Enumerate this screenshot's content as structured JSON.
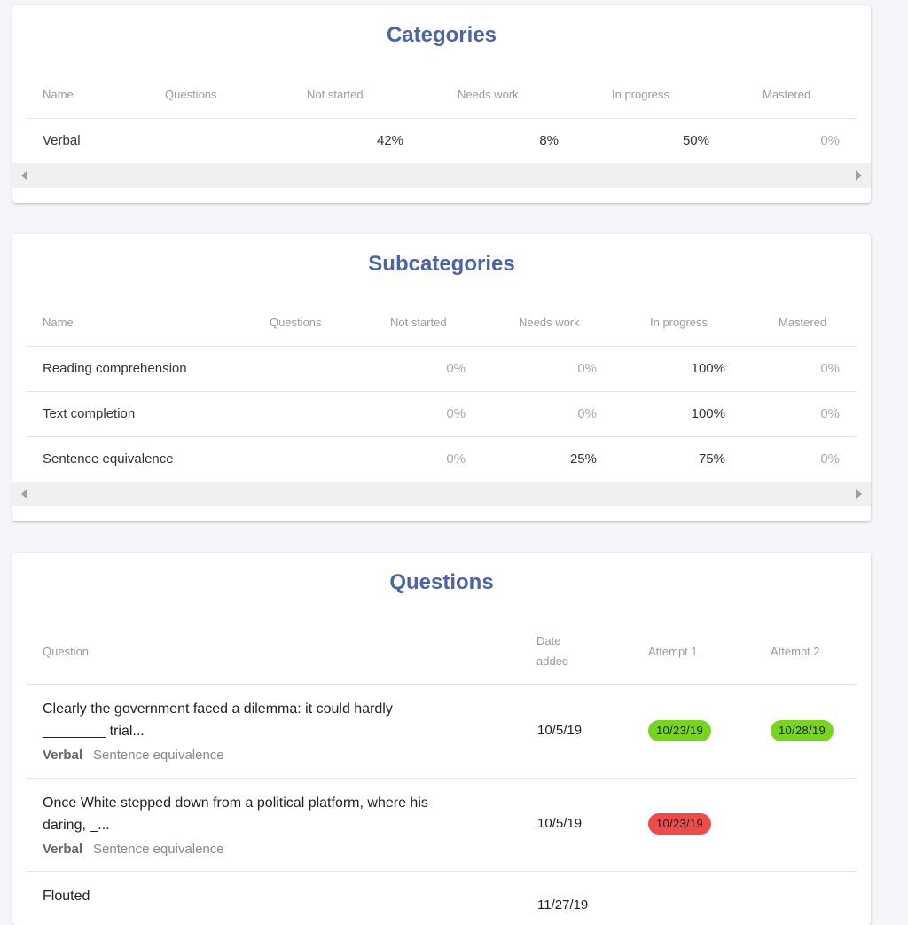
{
  "categories": {
    "title": "Categories",
    "headers": [
      "Name",
      "Questions",
      "Not started",
      "Needs work",
      "In progress",
      "Mastered"
    ],
    "rows": [
      {
        "name": "Verbal",
        "questions": "",
        "not_started": "42%",
        "needs_work": "8%",
        "in_progress": "50%",
        "mastered": "0%"
      }
    ]
  },
  "subcategories": {
    "title": "Subcategories",
    "headers": [
      "Name",
      "Questions",
      "Not started",
      "Needs work",
      "In progress",
      "Mastered"
    ],
    "rows": [
      {
        "name": "Reading comprehension",
        "questions": "",
        "not_started": "0%",
        "needs_work": "0%",
        "in_progress": "100%",
        "mastered": "0%"
      },
      {
        "name": "Text completion",
        "questions": "",
        "not_started": "0%",
        "needs_work": "0%",
        "in_progress": "100%",
        "mastered": "0%"
      },
      {
        "name": "Sentence equivalence",
        "questions": "",
        "not_started": "0%",
        "needs_work": "25%",
        "in_progress": "75%",
        "mastered": "0%"
      }
    ]
  },
  "questions": {
    "title": "Questions",
    "headers": {
      "question": "Question",
      "date_line1": "Date",
      "date_line2": "added",
      "attempt1": "Attempt 1",
      "attempt2": "Attempt 2"
    },
    "rows": [
      {
        "text_line1": "Clearly the government faced a dilemma: it could hardly",
        "text_line2": "________ trial...",
        "category": "Verbal",
        "subcategory": "Sentence equivalence",
        "date_added": "10/5/19",
        "attempt1": "10/23/19",
        "attempt1_status": "correct",
        "attempt2": "10/28/19",
        "attempt2_status": "correct"
      },
      {
        "text_line1": "Once White stepped down from a political platform, where his",
        "text_line2": "daring, _...",
        "category": "Verbal",
        "subcategory": "Sentence equivalence",
        "date_added": "10/5/19",
        "attempt1": "10/23/19",
        "attempt1_status": "incorrect",
        "attempt2": "",
        "attempt2_status": ""
      },
      {
        "text_line1": "Flouted",
        "text_line2": "",
        "category": "",
        "subcategory": "",
        "date_added": "11/27/19",
        "attempt1": "",
        "attempt1_status": "",
        "attempt2": "",
        "attempt2_status": ""
      }
    ]
  },
  "colors": {
    "accent": "#4a63ab",
    "correct": "#79d421",
    "incorrect": "#f04b4b",
    "background": "#f4f6fa"
  }
}
